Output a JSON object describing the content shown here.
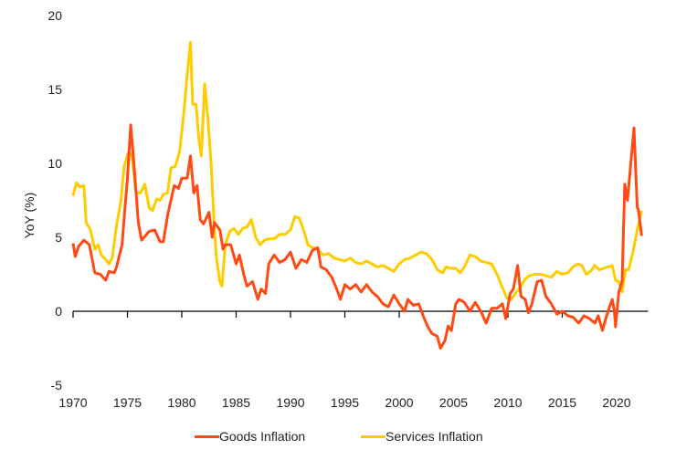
{
  "chart_data": {
    "type": "line",
    "title": "",
    "xlabel": "",
    "ylabel": "YoY (%)",
    "xlim": [
      1970,
      2022.9
    ],
    "ylim": [
      -5,
      20
    ],
    "xticks": [
      "1970",
      "1975",
      "1980",
      "1985",
      "1990",
      "1995",
      "2000",
      "2005",
      "2010",
      "2015",
      "2020"
    ],
    "yticks": [
      "20",
      "15",
      "10",
      "5",
      "0",
      "-5"
    ],
    "grid": false,
    "legend_position": "bottom",
    "series": [
      {
        "name": "Goods Inflation",
        "color": "#FF4A14",
        "points": [
          [
            1970,
            4.6
          ],
          [
            1970.2,
            3.7
          ],
          [
            1970.5,
            4.4
          ],
          [
            1971,
            4.8
          ],
          [
            1971.5,
            4.5
          ],
          [
            1972,
            2.6
          ],
          [
            1972.5,
            2.5
          ],
          [
            1973,
            2.1
          ],
          [
            1973.3,
            2.7
          ],
          [
            1973.8,
            2.6
          ],
          [
            1974,
            3.0
          ],
          [
            1974.5,
            4.5
          ],
          [
            1975,
            9.0
          ],
          [
            1975.3,
            12.6
          ],
          [
            1975.6,
            10
          ],
          [
            1976,
            6
          ],
          [
            1976.3,
            4.8
          ],
          [
            1977,
            5.4
          ],
          [
            1977.5,
            5.5
          ],
          [
            1978,
            4.7
          ],
          [
            1978.3,
            4.7
          ],
          [
            1978.7,
            6.5
          ],
          [
            1979.3,
            8.5
          ],
          [
            1979.7,
            8.3
          ],
          [
            1980,
            9.0
          ],
          [
            1980.5,
            9.0
          ],
          [
            1980.8,
            10.5
          ],
          [
            1981.1,
            8.0
          ],
          [
            1981.4,
            8.5
          ],
          [
            1981.7,
            6.2
          ],
          [
            1982,
            5.9
          ],
          [
            1982.5,
            6.7
          ],
          [
            1982.8,
            5.0
          ],
          [
            1983,
            6.0
          ],
          [
            1983.5,
            5.5
          ],
          [
            1983.8,
            4.2
          ],
          [
            1984,
            4.5
          ],
          [
            1984.5,
            4.5
          ],
          [
            1985,
            3.2
          ],
          [
            1985.3,
            3.8
          ],
          [
            1985.7,
            2.5
          ],
          [
            1986,
            1.7
          ],
          [
            1986.5,
            2.0
          ],
          [
            1987,
            0.8
          ],
          [
            1987.3,
            1.5
          ],
          [
            1987.7,
            1.2
          ],
          [
            1988,
            3.2
          ],
          [
            1988.5,
            3.8
          ],
          [
            1989,
            3.3
          ],
          [
            1989.5,
            3.5
          ],
          [
            1990,
            4.0
          ],
          [
            1990.5,
            2.9
          ],
          [
            1991,
            3.5
          ],
          [
            1991.5,
            3.3
          ],
          [
            1992,
            4.1
          ],
          [
            1992.5,
            4.3
          ],
          [
            1992.8,
            3.0
          ],
          [
            1993.3,
            2.8
          ],
          [
            1993.8,
            2.3
          ],
          [
            1994.3,
            1.4
          ],
          [
            1994.6,
            0.8
          ],
          [
            1995,
            1.8
          ],
          [
            1995.5,
            1.5
          ],
          [
            1996,
            1.8
          ],
          [
            1996.5,
            1.3
          ],
          [
            1997,
            1.8
          ],
          [
            1997.5,
            1.3
          ],
          [
            1998,
            1.0
          ],
          [
            1998.5,
            0.5
          ],
          [
            1999,
            0.3
          ],
          [
            1999.5,
            1.1
          ],
          [
            2000,
            0.5
          ],
          [
            2000.5,
            0.0
          ],
          [
            2000.8,
            0.8
          ],
          [
            2001.3,
            0.4
          ],
          [
            2001.8,
            0.5
          ],
          [
            2002.2,
            -0.3
          ],
          [
            2002.6,
            -1.0
          ],
          [
            2003,
            -1.5
          ],
          [
            2003.5,
            -1.7
          ],
          [
            2003.8,
            -2.5
          ],
          [
            2004.2,
            -2.0
          ],
          [
            2004.5,
            -1.0
          ],
          [
            2004.8,
            -1.3
          ],
          [
            2005.2,
            0.5
          ],
          [
            2005.5,
            0.8
          ],
          [
            2006,
            0.6
          ],
          [
            2006.5,
            0.0
          ],
          [
            2007,
            0.6
          ],
          [
            2007.5,
            0.0
          ],
          [
            2008,
            -0.8
          ],
          [
            2008.5,
            0.2
          ],
          [
            2009,
            0.2
          ],
          [
            2009.5,
            0.5
          ],
          [
            2009.8,
            -0.5
          ],
          [
            2010.2,
            1.2
          ],
          [
            2010.5,
            1.5
          ],
          [
            2010.9,
            3.1
          ],
          [
            2011.2,
            1.0
          ],
          [
            2011.6,
            0.8
          ],
          [
            2011.9,
            -0.1
          ],
          [
            2012.2,
            0.5
          ],
          [
            2012.7,
            2.0
          ],
          [
            2013.1,
            2.1
          ],
          [
            2013.5,
            1.0
          ],
          [
            2014,
            0.5
          ],
          [
            2014.5,
            -0.2
          ],
          [
            2015,
            0
          ],
          [
            2015.5,
            -0.3
          ],
          [
            2016,
            -0.4
          ],
          [
            2016.5,
            -0.8
          ],
          [
            2017,
            -0.3
          ],
          [
            2017.5,
            -0.5
          ],
          [
            2018,
            -0.8
          ],
          [
            2018.3,
            -0.3
          ],
          [
            2018.7,
            -1.3
          ],
          [
            2019,
            -0.5
          ],
          [
            2019.3,
            0.2
          ],
          [
            2019.6,
            0.8
          ],
          [
            2019.8,
            0.0
          ],
          [
            2019.9,
            -1.05
          ],
          [
            2020.2,
            1.3
          ],
          [
            2020.5,
            2.0
          ],
          [
            2020.75,
            8.6
          ],
          [
            2021.0,
            7.5
          ],
          [
            2021.6,
            12.4
          ],
          [
            2021.9,
            7.0
          ],
          [
            2022.0,
            6.9
          ],
          [
            2022.3,
            5.1
          ]
        ]
      },
      {
        "name": "Services Inflation",
        "color": "#FFCC00",
        "points": [
          [
            1970,
            7.8
          ],
          [
            1970.3,
            8.7
          ],
          [
            1970.6,
            8.4
          ],
          [
            1971,
            8.5
          ],
          [
            1971.2,
            6.0
          ],
          [
            1971.6,
            5.5
          ],
          [
            1972,
            4.2
          ],
          [
            1972.3,
            4.5
          ],
          [
            1972.6,
            3.8
          ],
          [
            1973,
            3.5
          ],
          [
            1973.3,
            3.2
          ],
          [
            1973.6,
            3.6
          ],
          [
            1974,
            5.8
          ],
          [
            1974.4,
            7.5
          ],
          [
            1974.7,
            9.8
          ],
          [
            1975.1,
            10.8
          ],
          [
            1975.4,
            10.5
          ],
          [
            1975.8,
            8.0
          ],
          [
            1976.2,
            8.0
          ],
          [
            1976.6,
            8.6
          ],
          [
            1977,
            7.0
          ],
          [
            1977.3,
            6.8
          ],
          [
            1977.7,
            7.6
          ],
          [
            1978,
            7.5
          ],
          [
            1978.3,
            7.9
          ],
          [
            1978.7,
            8.0
          ],
          [
            1979,
            9.7
          ],
          [
            1979.4,
            9.8
          ],
          [
            1979.8,
            10.8
          ],
          [
            1980.2,
            13.5
          ],
          [
            1980.5,
            16.0
          ],
          [
            1980.8,
            18.2
          ],
          [
            1981,
            14.0
          ],
          [
            1981.3,
            14.0
          ],
          [
            1981.6,
            11.5
          ],
          [
            1981.8,
            10.5
          ],
          [
            1982.1,
            15.4
          ],
          [
            1982.4,
            13.0
          ],
          [
            1982.7,
            10.0
          ],
          [
            1983,
            5.5
          ],
          [
            1983.2,
            3.5
          ],
          [
            1983.5,
            2.0
          ],
          [
            1983.7,
            1.7
          ],
          [
            1984,
            4.5
          ],
          [
            1984.4,
            5.4
          ],
          [
            1984.8,
            5.6
          ],
          [
            1985.2,
            5.2
          ],
          [
            1985.6,
            5.6
          ],
          [
            1986,
            5.7
          ],
          [
            1986.4,
            6.2
          ],
          [
            1986.8,
            5.0
          ],
          [
            1987.2,
            4.5
          ],
          [
            1987.6,
            4.8
          ],
          [
            1988,
            4.9
          ],
          [
            1988.5,
            4.9
          ],
          [
            1989,
            5.2
          ],
          [
            1989.5,
            5.2
          ],
          [
            1990,
            5.5
          ],
          [
            1990.4,
            6.4
          ],
          [
            1990.8,
            6.3
          ],
          [
            1991.2,
            5.5
          ],
          [
            1991.6,
            4.5
          ],
          [
            1992,
            4.3
          ],
          [
            1992.5,
            4.2
          ],
          [
            1993,
            3.8
          ],
          [
            1993.5,
            3.9
          ],
          [
            1994,
            3.6
          ],
          [
            1994.5,
            3.5
          ],
          [
            1995,
            3.4
          ],
          [
            1995.5,
            3.6
          ],
          [
            1996,
            3.3
          ],
          [
            1996.5,
            3.2
          ],
          [
            1997,
            3.4
          ],
          [
            1997.5,
            3.2
          ],
          [
            1998,
            3.0
          ],
          [
            1998.5,
            3.1
          ],
          [
            1999,
            2.9
          ],
          [
            1999.5,
            2.7
          ],
          [
            2000,
            3.2
          ],
          [
            2000.5,
            3.5
          ],
          [
            2001,
            3.6
          ],
          [
            2001.5,
            3.8
          ],
          [
            2002,
            4.0
          ],
          [
            2002.5,
            3.9
          ],
          [
            2003,
            3.5
          ],
          [
            2003.5,
            2.8
          ],
          [
            2004,
            2.6
          ],
          [
            2004.3,
            3.0
          ],
          [
            2004.7,
            2.9
          ],
          [
            2005.2,
            2.9
          ],
          [
            2005.6,
            2.6
          ],
          [
            2006,
            3.0
          ],
          [
            2006.5,
            3.8
          ],
          [
            2007,
            3.7
          ],
          [
            2007.5,
            3.4
          ],
          [
            2008,
            3.3
          ],
          [
            2008.5,
            3.2
          ],
          [
            2009,
            2.5
          ],
          [
            2009.5,
            1.6
          ],
          [
            2009.9,
            0.9
          ],
          [
            2010.3,
            0.8
          ],
          [
            2010.7,
            1.2
          ],
          [
            2011.2,
            1.7
          ],
          [
            2011.6,
            2.2
          ],
          [
            2012,
            2.4
          ],
          [
            2012.5,
            2.5
          ],
          [
            2013,
            2.5
          ],
          [
            2013.5,
            2.4
          ],
          [
            2014,
            2.3
          ],
          [
            2014.5,
            2.7
          ],
          [
            2015,
            2.5
          ],
          [
            2015.5,
            2.6
          ],
          [
            2016,
            3.0
          ],
          [
            2016.4,
            3.2
          ],
          [
            2016.8,
            3.1
          ],
          [
            2017.2,
            2.5
          ],
          [
            2017.6,
            2.7
          ],
          [
            2018,
            3.1
          ],
          [
            2018.4,
            2.8
          ],
          [
            2018.8,
            2.9
          ],
          [
            2019.2,
            3.0
          ],
          [
            2019.6,
            3.1
          ],
          [
            2019.9,
            2.1
          ],
          [
            2020.2,
            2.0
          ],
          [
            2020.5,
            1.3
          ],
          [
            2020.8,
            2.8
          ],
          [
            2021.1,
            2.8
          ],
          [
            2021.5,
            4.0
          ],
          [
            2021.9,
            5.5
          ],
          [
            2022.3,
            6.8
          ]
        ]
      }
    ]
  }
}
